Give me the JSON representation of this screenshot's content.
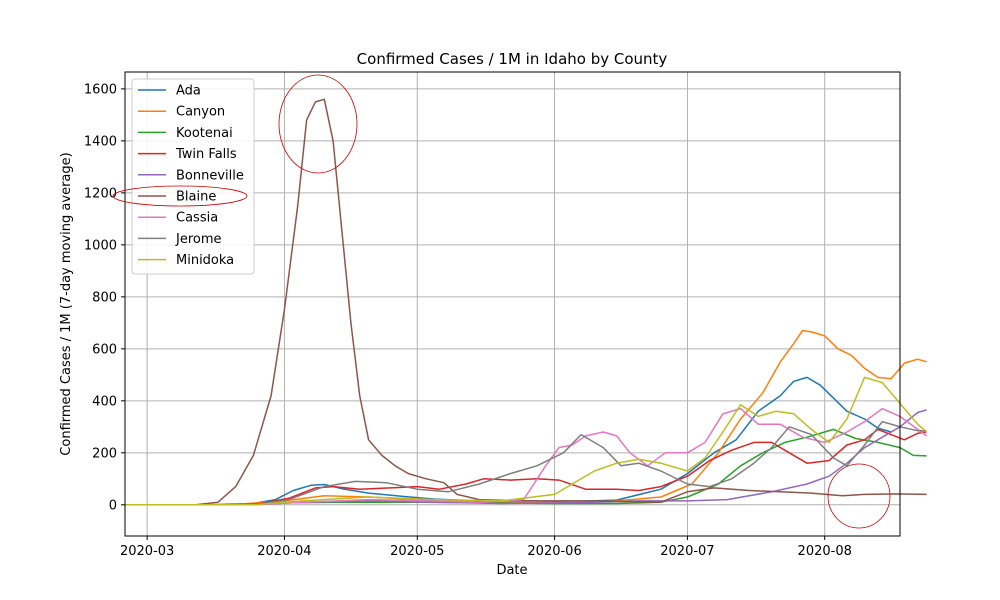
{
  "chart_data": {
    "type": "line",
    "title": "Confirmed Cases / 1M in Idaho by County",
    "xlabel": "Date",
    "ylabel": "Confirmed Cases / 1M (7-day moving average)",
    "x_ticks": [
      "2020-03",
      "2020-04",
      "2020-05",
      "2020-06",
      "2020-07",
      "2020-08"
    ],
    "y_ticks": [
      0,
      200,
      400,
      600,
      800,
      1000,
      1200,
      1400,
      1600
    ],
    "xlim": [
      "2020-02-25",
      "2020-08-18"
    ],
    "ylim": [
      -120,
      1665
    ],
    "grid": true,
    "legend_position": "upper-left",
    "series": [
      {
        "name": "Ada",
        "color": "#1f77b4",
        "points": [
          [
            "2020-02-25",
            0
          ],
          [
            "2020-03-15",
            0
          ],
          [
            "2020-03-25",
            5
          ],
          [
            "2020-03-30",
            20
          ],
          [
            "2020-04-03",
            55
          ],
          [
            "2020-04-07",
            75
          ],
          [
            "2020-04-10",
            78
          ],
          [
            "2020-04-14",
            62
          ],
          [
            "2020-04-20",
            45
          ],
          [
            "2020-04-28",
            32
          ],
          [
            "2020-05-05",
            22
          ],
          [
            "2020-05-15",
            15
          ],
          [
            "2020-05-25",
            15
          ],
          [
            "2020-06-05",
            13
          ],
          [
            "2020-06-15",
            18
          ],
          [
            "2020-06-25",
            60
          ],
          [
            "2020-07-01",
            120
          ],
          [
            "2020-07-07",
            200
          ],
          [
            "2020-07-12",
            250
          ],
          [
            "2020-07-17",
            360
          ],
          [
            "2020-07-22",
            420
          ],
          [
            "2020-07-25",
            475
          ],
          [
            "2020-07-28",
            490
          ],
          [
            "2020-07-31",
            460
          ],
          [
            "2020-08-03",
            410
          ],
          [
            "2020-08-06",
            360
          ],
          [
            "2020-08-10",
            330
          ],
          [
            "2020-08-13",
            295
          ],
          [
            "2020-08-16",
            280
          ]
        ]
      },
      {
        "name": "Canyon",
        "color": "#ff7f0e",
        "points": [
          [
            "2020-02-25",
            0
          ],
          [
            "2020-03-20",
            0
          ],
          [
            "2020-04-01",
            15
          ],
          [
            "2020-04-10",
            35
          ],
          [
            "2020-04-20",
            30
          ],
          [
            "2020-05-01",
            20
          ],
          [
            "2020-05-15",
            10
          ],
          [
            "2020-06-01",
            8
          ],
          [
            "2020-06-15",
            15
          ],
          [
            "2020-06-25",
            30
          ],
          [
            "2020-07-02",
            80
          ],
          [
            "2020-07-08",
            200
          ],
          [
            "2020-07-13",
            330
          ],
          [
            "2020-07-18",
            430
          ],
          [
            "2020-07-22",
            550
          ],
          [
            "2020-07-25",
            620
          ],
          [
            "2020-07-27",
            670
          ],
          [
            "2020-07-29",
            665
          ],
          [
            "2020-08-01",
            650
          ],
          [
            "2020-08-04",
            600
          ],
          [
            "2020-08-07",
            575
          ],
          [
            "2020-08-10",
            525
          ],
          [
            "2020-08-13",
            490
          ],
          [
            "2020-08-16",
            485
          ],
          [
            "2020-08-19",
            545
          ],
          [
            "2020-08-22",
            560
          ],
          [
            "2020-08-24",
            550
          ]
        ]
      },
      {
        "name": "Kootenai",
        "color": "#2ca02c",
        "points": [
          [
            "2020-02-25",
            0
          ],
          [
            "2020-03-20",
            0
          ],
          [
            "2020-04-01",
            8
          ],
          [
            "2020-04-15",
            10
          ],
          [
            "2020-05-01",
            10
          ],
          [
            "2020-05-15",
            8
          ],
          [
            "2020-06-01",
            5
          ],
          [
            "2020-06-15",
            5
          ],
          [
            "2020-06-25",
            10
          ],
          [
            "2020-07-01",
            30
          ],
          [
            "2020-07-08",
            80
          ],
          [
            "2020-07-13",
            150
          ],
          [
            "2020-07-18",
            200
          ],
          [
            "2020-07-23",
            240
          ],
          [
            "2020-07-28",
            260
          ],
          [
            "2020-08-03",
            290
          ],
          [
            "2020-08-08",
            255
          ],
          [
            "2020-08-13",
            240
          ],
          [
            "2020-08-18",
            220
          ],
          [
            "2020-08-21",
            190
          ],
          [
            "2020-08-24",
            188
          ]
        ]
      },
      {
        "name": "Twin Falls",
        "color": "#d62728",
        "points": [
          [
            "2020-02-25",
            0
          ],
          [
            "2020-03-25",
            0
          ],
          [
            "2020-04-02",
            25
          ],
          [
            "2020-04-08",
            65
          ],
          [
            "2020-04-12",
            70
          ],
          [
            "2020-04-18",
            60
          ],
          [
            "2020-04-25",
            65
          ],
          [
            "2020-05-01",
            70
          ],
          [
            "2020-05-06",
            60
          ],
          [
            "2020-05-12",
            80
          ],
          [
            "2020-05-16",
            100
          ],
          [
            "2020-05-22",
            95
          ],
          [
            "2020-05-28",
            100
          ],
          [
            "2020-06-02",
            95
          ],
          [
            "2020-06-08",
            60
          ],
          [
            "2020-06-15",
            60
          ],
          [
            "2020-06-20",
            55
          ],
          [
            "2020-06-25",
            70
          ],
          [
            "2020-07-01",
            110
          ],
          [
            "2020-07-06",
            170
          ],
          [
            "2020-07-11",
            210
          ],
          [
            "2020-07-16",
            240
          ],
          [
            "2020-07-20",
            240
          ],
          [
            "2020-07-24",
            200
          ],
          [
            "2020-07-28",
            160
          ],
          [
            "2020-08-02",
            170
          ],
          [
            "2020-08-06",
            230
          ],
          [
            "2020-08-10",
            250
          ],
          [
            "2020-08-13",
            290
          ],
          [
            "2020-08-16",
            270
          ],
          [
            "2020-08-19",
            250
          ],
          [
            "2020-08-22",
            275
          ],
          [
            "2020-08-24",
            280
          ]
        ]
      },
      {
        "name": "Bonneville",
        "color": "#9467bd",
        "points": [
          [
            "2020-02-25",
            0
          ],
          [
            "2020-03-25",
            0
          ],
          [
            "2020-04-05",
            10
          ],
          [
            "2020-04-20",
            15
          ],
          [
            "2020-05-05",
            10
          ],
          [
            "2020-05-20",
            5
          ],
          [
            "2020-06-05",
            8
          ],
          [
            "2020-06-20",
            15
          ],
          [
            "2020-07-01",
            15
          ],
          [
            "2020-07-10",
            20
          ],
          [
            "2020-07-20",
            50
          ],
          [
            "2020-07-28",
            80
          ],
          [
            "2020-08-02",
            110
          ],
          [
            "2020-08-06",
            160
          ],
          [
            "2020-08-10",
            220
          ],
          [
            "2020-08-14",
            260
          ],
          [
            "2020-08-18",
            300
          ],
          [
            "2020-08-22",
            355
          ],
          [
            "2020-08-24",
            365
          ]
        ]
      },
      {
        "name": "Blaine",
        "color": "#8c564b",
        "points": [
          [
            "2020-02-25",
            0
          ],
          [
            "2020-03-12",
            0
          ],
          [
            "2020-03-17",
            10
          ],
          [
            "2020-03-21",
            70
          ],
          [
            "2020-03-25",
            190
          ],
          [
            "2020-03-29",
            420
          ],
          [
            "2020-04-01",
            750
          ],
          [
            "2020-04-04",
            1150
          ],
          [
            "2020-04-06",
            1480
          ],
          [
            "2020-04-08",
            1550
          ],
          [
            "2020-04-10",
            1560
          ],
          [
            "2020-04-12",
            1400
          ],
          [
            "2020-04-14",
            1050
          ],
          [
            "2020-04-16",
            700
          ],
          [
            "2020-04-18",
            420
          ],
          [
            "2020-04-20",
            250
          ],
          [
            "2020-04-23",
            190
          ],
          [
            "2020-04-26",
            150
          ],
          [
            "2020-04-29",
            120
          ],
          [
            "2020-05-03",
            100
          ],
          [
            "2020-05-07",
            85
          ],
          [
            "2020-05-10",
            40
          ],
          [
            "2020-05-15",
            20
          ],
          [
            "2020-05-25",
            15
          ],
          [
            "2020-06-10",
            15
          ],
          [
            "2020-06-25",
            10
          ],
          [
            "2020-07-01",
            50
          ],
          [
            "2020-07-07",
            65
          ],
          [
            "2020-07-15",
            55
          ],
          [
            "2020-07-22",
            50
          ],
          [
            "2020-07-29",
            45
          ],
          [
            "2020-08-05",
            35
          ],
          [
            "2020-08-10",
            40
          ],
          [
            "2020-08-17",
            42
          ],
          [
            "2020-08-24",
            40
          ]
        ]
      },
      {
        "name": "Cassia",
        "color": "#e377c2",
        "points": [
          [
            "2020-02-25",
            0
          ],
          [
            "2020-03-25",
            0
          ],
          [
            "2020-04-05",
            10
          ],
          [
            "2020-04-20",
            20
          ],
          [
            "2020-05-05",
            15
          ],
          [
            "2020-05-15",
            10
          ],
          [
            "2020-05-25",
            20
          ],
          [
            "2020-05-30",
            150
          ],
          [
            "2020-06-02",
            220
          ],
          [
            "2020-06-05",
            230
          ],
          [
            "2020-06-08",
            265
          ],
          [
            "2020-06-12",
            280
          ],
          [
            "2020-06-15",
            265
          ],
          [
            "2020-06-18",
            200
          ],
          [
            "2020-06-22",
            150
          ],
          [
            "2020-06-26",
            200
          ],
          [
            "2020-07-01",
            200
          ],
          [
            "2020-07-05",
            240
          ],
          [
            "2020-07-09",
            350
          ],
          [
            "2020-07-13",
            370
          ],
          [
            "2020-07-17",
            310
          ],
          [
            "2020-07-22",
            310
          ],
          [
            "2020-07-27",
            260
          ],
          [
            "2020-08-01",
            240
          ],
          [
            "2020-08-06",
            280
          ],
          [
            "2020-08-10",
            320
          ],
          [
            "2020-08-14",
            370
          ],
          [
            "2020-08-18",
            340
          ],
          [
            "2020-08-22",
            290
          ],
          [
            "2020-08-24",
            265
          ]
        ]
      },
      {
        "name": "Jerome",
        "color": "#7f7f7f",
        "points": [
          [
            "2020-02-25",
            0
          ],
          [
            "2020-03-25",
            0
          ],
          [
            "2020-04-02",
            20
          ],
          [
            "2020-04-10",
            70
          ],
          [
            "2020-04-17",
            90
          ],
          [
            "2020-04-24",
            85
          ],
          [
            "2020-05-01",
            60
          ],
          [
            "2020-05-08",
            50
          ],
          [
            "2020-05-15",
            80
          ],
          [
            "2020-05-22",
            120
          ],
          [
            "2020-05-28",
            150
          ],
          [
            "2020-06-03",
            200
          ],
          [
            "2020-06-07",
            270
          ],
          [
            "2020-06-12",
            220
          ],
          [
            "2020-06-16",
            150
          ],
          [
            "2020-06-20",
            160
          ],
          [
            "2020-06-25",
            130
          ],
          [
            "2020-07-01",
            80
          ],
          [
            "2020-07-06",
            70
          ],
          [
            "2020-07-11",
            100
          ],
          [
            "2020-07-16",
            160
          ],
          [
            "2020-07-20",
            220
          ],
          [
            "2020-07-24",
            300
          ],
          [
            "2020-07-29",
            270
          ],
          [
            "2020-08-03",
            180
          ],
          [
            "2020-08-06",
            150
          ],
          [
            "2020-08-10",
            230
          ],
          [
            "2020-08-14",
            320
          ],
          [
            "2020-08-18",
            300
          ],
          [
            "2020-08-22",
            285
          ],
          [
            "2020-08-24",
            285
          ]
        ]
      },
      {
        "name": "Minidoka",
        "color": "#bcbd22",
        "points": [
          [
            "2020-02-25",
            0
          ],
          [
            "2020-03-25",
            0
          ],
          [
            "2020-04-05",
            15
          ],
          [
            "2020-04-20",
            30
          ],
          [
            "2020-05-05",
            20
          ],
          [
            "2020-05-20",
            15
          ],
          [
            "2020-06-01",
            40
          ],
          [
            "2020-06-06",
            90
          ],
          [
            "2020-06-10",
            130
          ],
          [
            "2020-06-15",
            160
          ],
          [
            "2020-06-20",
            175
          ],
          [
            "2020-06-25",
            160
          ],
          [
            "2020-07-01",
            130
          ],
          [
            "2020-07-05",
            180
          ],
          [
            "2020-07-09",
            280
          ],
          [
            "2020-07-13",
            385
          ],
          [
            "2020-07-17",
            340
          ],
          [
            "2020-07-21",
            360
          ],
          [
            "2020-07-25",
            350
          ],
          [
            "2020-07-29",
            290
          ],
          [
            "2020-08-02",
            240
          ],
          [
            "2020-08-06",
            330
          ],
          [
            "2020-08-10",
            490
          ],
          [
            "2020-08-14",
            470
          ],
          [
            "2020-08-18",
            390
          ],
          [
            "2020-08-22",
            310
          ],
          [
            "2020-08-24",
            280
          ]
        ]
      }
    ]
  },
  "annotations": {
    "circle_color": "#cc0000"
  }
}
